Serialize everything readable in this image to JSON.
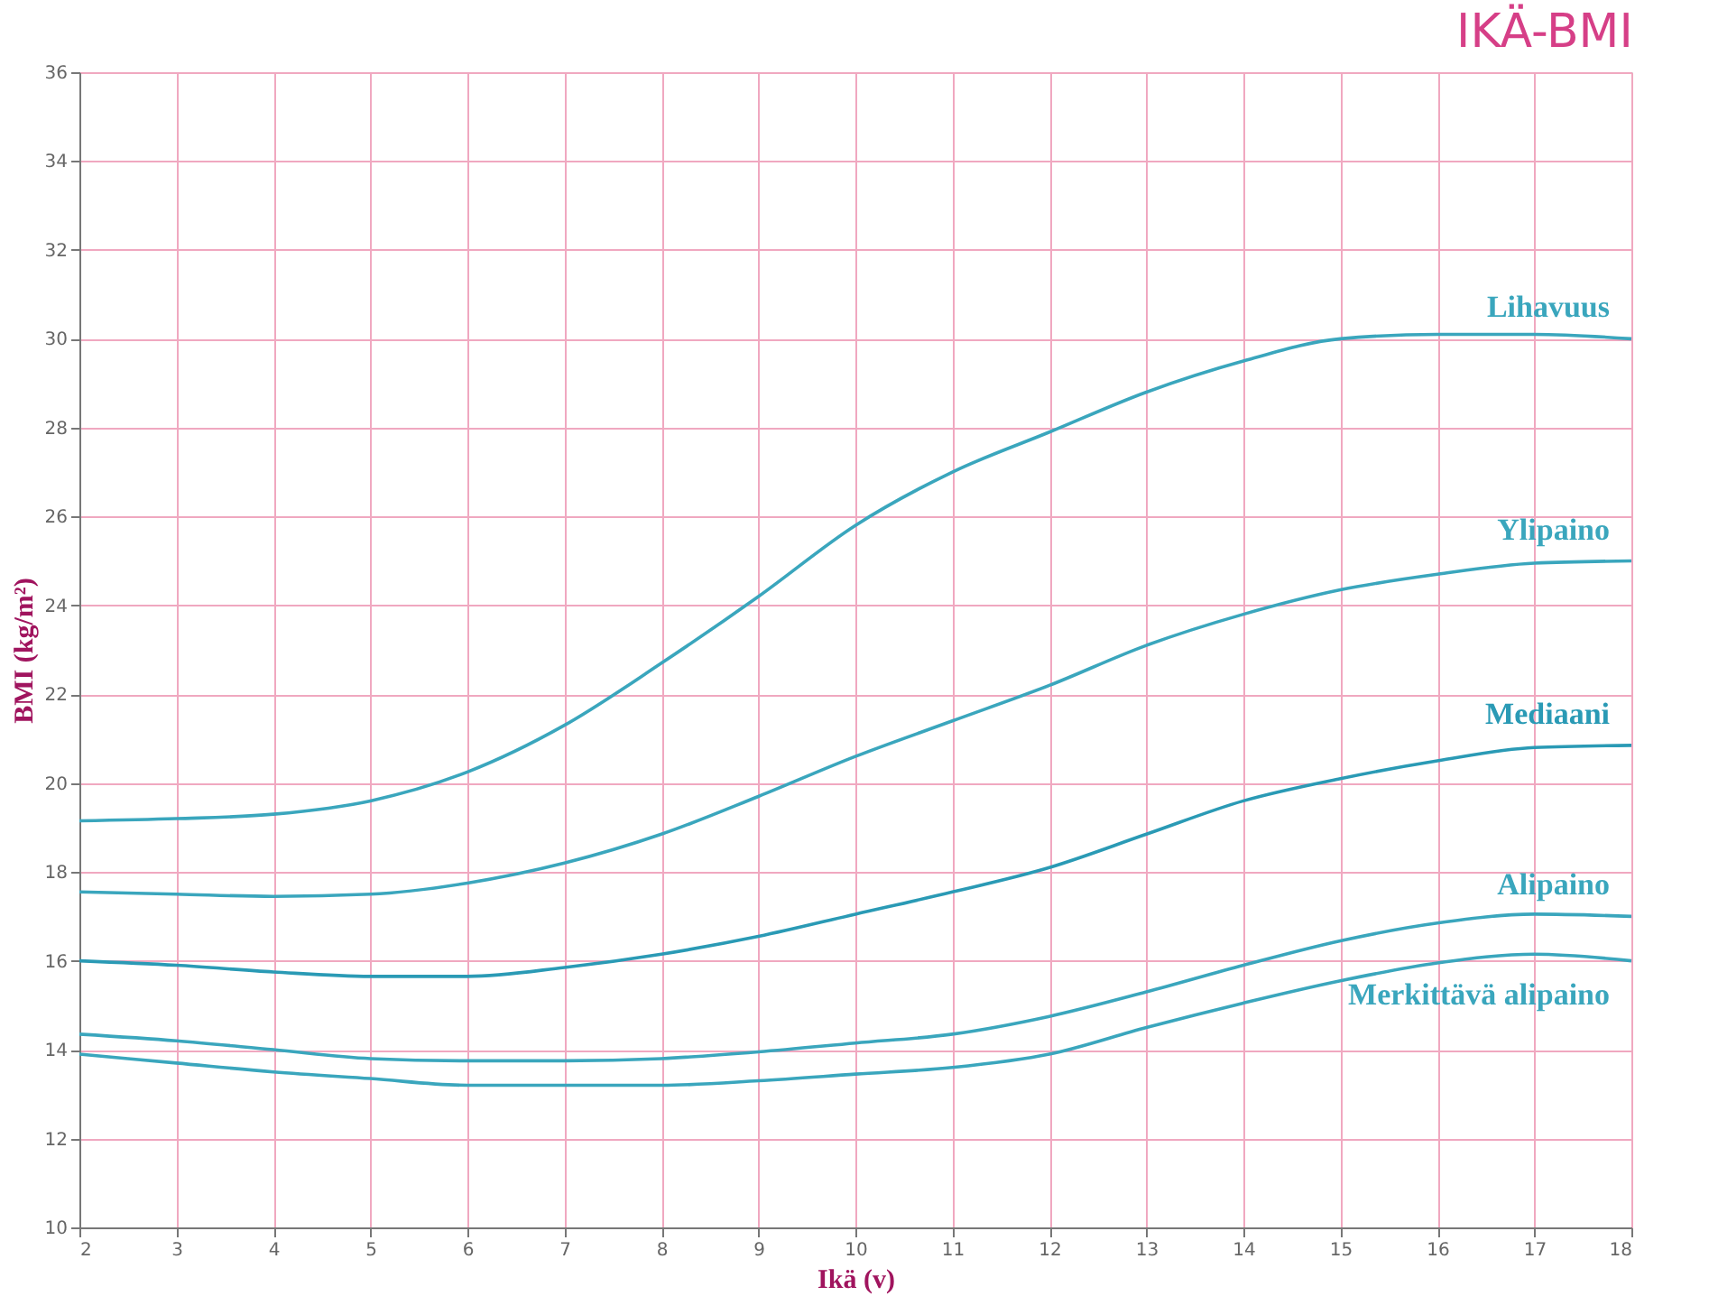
{
  "chart_data": {
    "type": "line",
    "title": "IKÄ-BMI",
    "xlabel": "Ikä (v)",
    "ylabel": "BMI (kg/m²)",
    "x": [
      2,
      3,
      4,
      5,
      6,
      7,
      8,
      9,
      10,
      11,
      12,
      13,
      14,
      15,
      16,
      17,
      18
    ],
    "xlim": [
      2,
      18
    ],
    "xticks": [
      2,
      3,
      4,
      5,
      6,
      7,
      8,
      9,
      10,
      11,
      12,
      13,
      14,
      15,
      16,
      17,
      18
    ],
    "ylim": [
      10,
      36
    ],
    "yticks": [
      10,
      12,
      14,
      16,
      18,
      20,
      22,
      24,
      26,
      28,
      30,
      32,
      34,
      36
    ],
    "grid": true,
    "legend": false,
    "marker": "none",
    "line_style": "solid",
    "series": [
      {
        "name": "Lihavuus",
        "color": "#3aa6bd",
        "values": [
          19.15,
          19.2,
          19.3,
          19.6,
          20.25,
          21.3,
          22.7,
          24.2,
          25.8,
          27.0,
          27.9,
          28.8,
          29.5,
          30.0,
          30.1,
          30.1,
          30.0
        ]
      },
      {
        "name": "Ylipaino",
        "color": "#3aa6bd",
        "values": [
          17.55,
          17.5,
          17.45,
          17.5,
          17.75,
          18.2,
          18.85,
          19.7,
          20.6,
          21.4,
          22.2,
          23.1,
          23.8,
          24.35,
          24.7,
          24.95,
          25.0
        ]
      },
      {
        "name": "Mediaani",
        "color": "#2a9ab5",
        "values": [
          16.0,
          15.9,
          15.75,
          15.65,
          15.65,
          15.85,
          16.15,
          16.55,
          17.05,
          17.55,
          18.1,
          18.85,
          19.6,
          20.1,
          20.5,
          20.8,
          20.85
        ]
      },
      {
        "name": "Alipaino",
        "color": "#3aa6bd",
        "values": [
          14.35,
          14.2,
          14.0,
          13.8,
          13.75,
          13.75,
          13.8,
          13.95,
          14.15,
          14.35,
          14.75,
          15.3,
          15.9,
          16.45,
          16.85,
          17.05,
          17.0
        ]
      },
      {
        "name": "Merkittävä alipaino",
        "color": "#3aa6bd",
        "values": [
          13.9,
          13.7,
          13.5,
          13.35,
          13.2,
          13.2,
          13.2,
          13.3,
          13.45,
          13.6,
          13.9,
          14.5,
          15.05,
          15.55,
          15.95,
          16.15,
          16.0
        ]
      }
    ]
  }
}
